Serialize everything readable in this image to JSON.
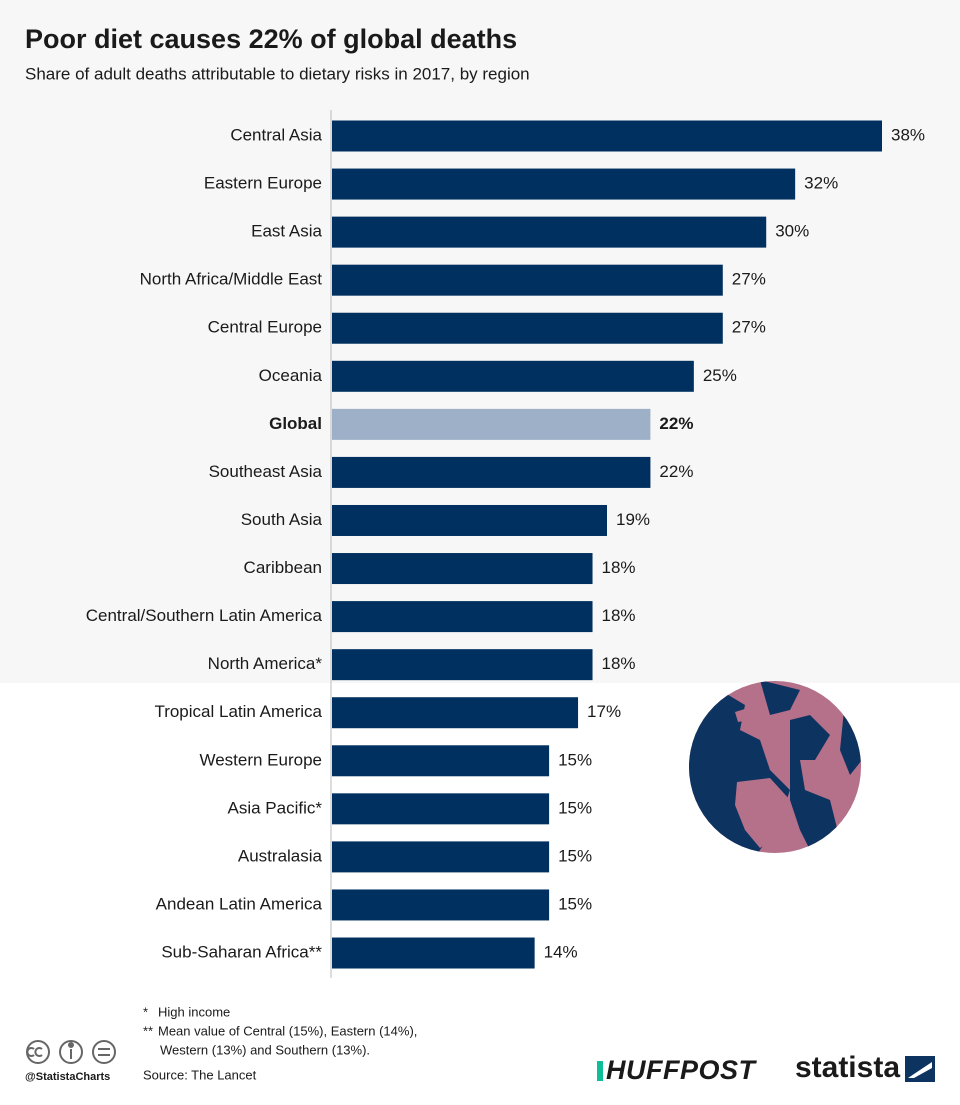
{
  "chart_data": {
    "type": "bar",
    "orientation": "horizontal",
    "title": "Poor diet causes 22% of global deaths",
    "subtitle": "Share of adult deaths attributable to dietary risks in 2017, by region",
    "categories": [
      "Central Asia",
      "Eastern Europe",
      "East Asia",
      "North Africa/Middle East",
      "Central Europe",
      "Oceania",
      "Global",
      "Southeast  Asia",
      "South Asia",
      "Caribbean",
      "Central/Southern Latin America",
      "North America*",
      "Tropical Latin America",
      "Western Europe",
      "Asia Pacific*",
      "Australasia",
      "Andean Latin America",
      "Sub-Saharan Africa**"
    ],
    "values": [
      38,
      32,
      30,
      27,
      27,
      25,
      22,
      22,
      19,
      18,
      18,
      18,
      17,
      15,
      15,
      15,
      15,
      14
    ],
    "value_labels": [
      "38%",
      "32%",
      "30%",
      "27%",
      "27%",
      "25%",
      "22%",
      "22%",
      "19%",
      "18%",
      "18%",
      "18%",
      "17%",
      "15%",
      "15%",
      "15%",
      "15%",
      "14%"
    ],
    "color": "#00305f",
    "highlight_index": 6,
    "highlight_color": "#9db0c8"
  },
  "footnotes": [
    {
      "mark": "*",
      "lines": [
        "High income"
      ]
    },
    {
      "mark": "**",
      "lines": [
        "Mean value of Central (15%), Eastern (14%),",
        "Western (13%) and Southern (13%)."
      ]
    }
  ],
  "source": "Source: The Lancet",
  "credit": "@StatistaCharts",
  "logos": [
    "HUFFPOST",
    "statista"
  ]
}
